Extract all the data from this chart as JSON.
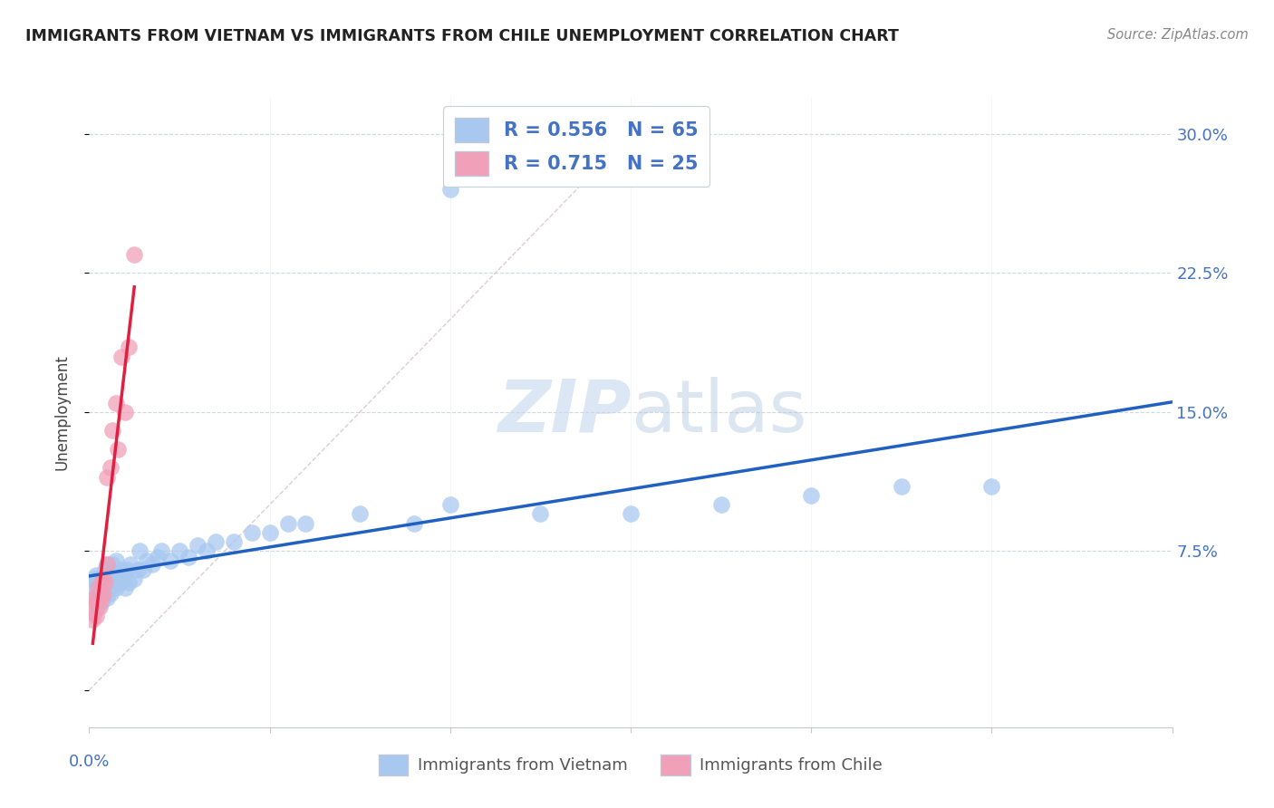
{
  "title": "IMMIGRANTS FROM VIETNAM VS IMMIGRANTS FROM CHILE UNEMPLOYMENT CORRELATION CHART",
  "source": "Source: ZipAtlas.com",
  "ylabel": "Unemployment",
  "ytick_values": [
    0.0,
    0.075,
    0.15,
    0.225,
    0.3
  ],
  "ytick_labels": [
    "",
    "7.5%",
    "15.0%",
    "22.5%",
    "30.0%"
  ],
  "xlim": [
    0.0,
    0.6
  ],
  "ylim": [
    -0.02,
    0.32
  ],
  "vietnam_color": "#A8C8F0",
  "chile_color": "#F0A0B8",
  "vietnam_line_color": "#2060C0",
  "chile_line_color": "#E02040",
  "diagonal_color": "#D0B8B8",
  "legend_label_vietnam": "Immigrants from Vietnam",
  "legend_label_chile": "Immigrants from Chile",
  "watermark_zip": "ZIP",
  "watermark_atlas": "atlas",
  "r_vietnam": "0.556",
  "n_vietnam": "65",
  "r_chile": "0.715",
  "n_chile": "25",
  "vietnam_x": [
    0.002,
    0.003,
    0.003,
    0.004,
    0.004,
    0.005,
    0.005,
    0.005,
    0.006,
    0.006,
    0.007,
    0.007,
    0.008,
    0.008,
    0.009,
    0.009,
    0.01,
    0.01,
    0.01,
    0.011,
    0.011,
    0.012,
    0.012,
    0.013,
    0.013,
    0.014,
    0.015,
    0.015,
    0.016,
    0.017,
    0.018,
    0.019,
    0.02,
    0.021,
    0.022,
    0.023,
    0.025,
    0.027,
    0.028,
    0.03,
    0.032,
    0.035,
    0.038,
    0.04,
    0.045,
    0.05,
    0.055,
    0.06,
    0.065,
    0.07,
    0.08,
    0.09,
    0.1,
    0.11,
    0.12,
    0.15,
    0.18,
    0.2,
    0.25,
    0.3,
    0.35,
    0.4,
    0.45,
    0.5,
    0.2
  ],
  "vietnam_y": [
    0.055,
    0.06,
    0.05,
    0.058,
    0.062,
    0.045,
    0.055,
    0.06,
    0.052,
    0.058,
    0.048,
    0.055,
    0.05,
    0.06,
    0.055,
    0.065,
    0.05,
    0.058,
    0.068,
    0.055,
    0.065,
    0.052,
    0.062,
    0.058,
    0.068,
    0.06,
    0.055,
    0.07,
    0.062,
    0.058,
    0.065,
    0.06,
    0.055,
    0.065,
    0.058,
    0.068,
    0.06,
    0.065,
    0.075,
    0.065,
    0.07,
    0.068,
    0.072,
    0.075,
    0.07,
    0.075,
    0.072,
    0.078,
    0.075,
    0.08,
    0.08,
    0.085,
    0.085,
    0.09,
    0.09,
    0.095,
    0.09,
    0.1,
    0.095,
    0.095,
    0.1,
    0.105,
    0.11,
    0.11,
    0.27
  ],
  "chile_x": [
    0.002,
    0.002,
    0.003,
    0.003,
    0.004,
    0.004,
    0.005,
    0.005,
    0.006,
    0.006,
    0.007,
    0.007,
    0.008,
    0.008,
    0.009,
    0.01,
    0.01,
    0.012,
    0.013,
    0.015,
    0.016,
    0.018,
    0.02,
    0.022,
    0.025
  ],
  "chile_y": [
    0.045,
    0.038,
    0.05,
    0.042,
    0.048,
    0.04,
    0.055,
    0.048,
    0.052,
    0.045,
    0.058,
    0.05,
    0.06,
    0.052,
    0.058,
    0.068,
    0.115,
    0.12,
    0.14,
    0.155,
    0.13,
    0.18,
    0.15,
    0.185,
    0.235
  ]
}
